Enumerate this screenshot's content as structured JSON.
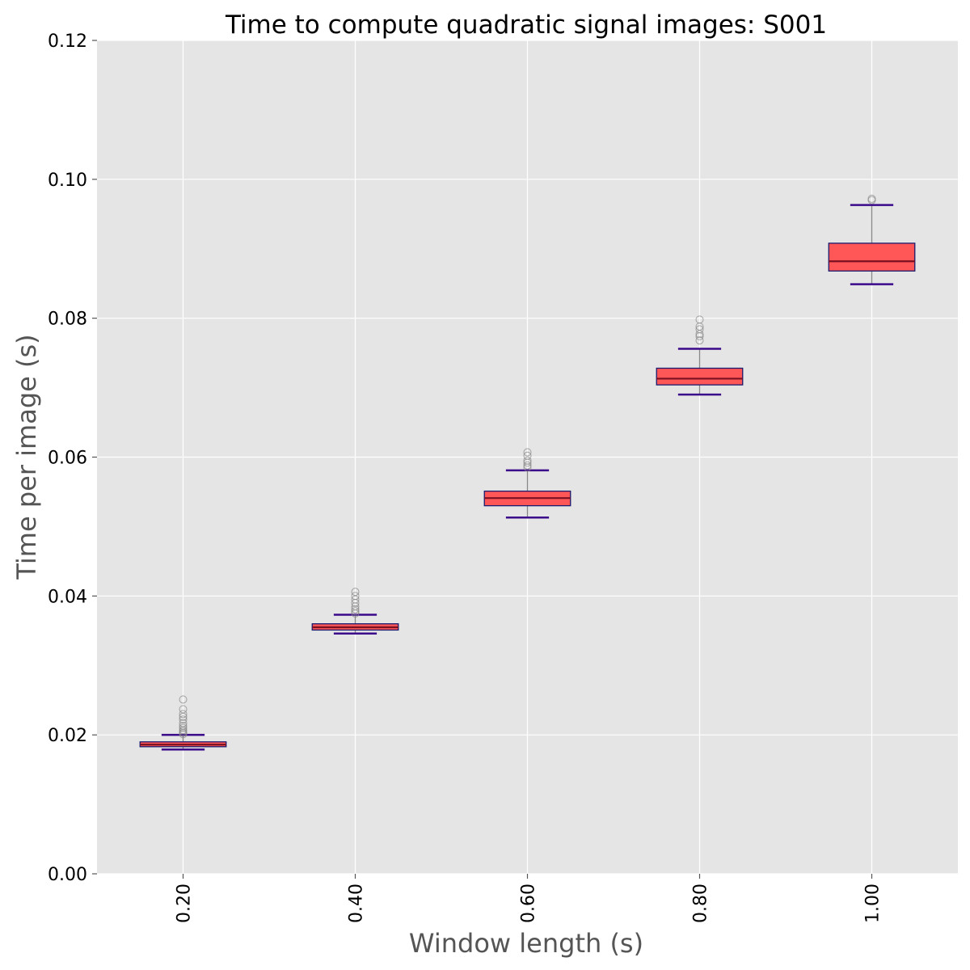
{
  "colors": {
    "plot_background": "#e5e5e5",
    "box_fill": "#ff5757",
    "box_edge": "#1a1a6e",
    "median": "#7a1020",
    "whisker_line": "#888888",
    "cap": "#3b0a8a",
    "flier": "#888888"
  },
  "chart_data": {
    "type": "box",
    "title": "Time to compute quadratic signal images: S001",
    "xlabel": "Window length (s)",
    "ylabel": "Time per image (s)",
    "xlim": [
      0.1,
      1.1
    ],
    "ylim": [
      0.0,
      0.12
    ],
    "xticks": [
      0.2,
      0.4,
      0.6,
      0.8,
      1.0
    ],
    "xtick_labels": [
      "0.20",
      "0.40",
      "0.60",
      "0.80",
      "1.00"
    ],
    "yticks": [
      0.0,
      0.02,
      0.04,
      0.06,
      0.08,
      0.1,
      0.12
    ],
    "ytick_labels": [
      "0.00",
      "0.02",
      "0.04",
      "0.06",
      "0.08",
      "0.10",
      "0.12"
    ],
    "grid": true,
    "boxes": [
      {
        "x": 0.2,
        "whislo": 0.0179,
        "q1": 0.0183,
        "med": 0.0186,
        "q3": 0.019,
        "whishi": 0.02,
        "fliers": [
          0.0201,
          0.0203,
          0.0205,
          0.0207,
          0.021,
          0.0213,
          0.0217,
          0.0222,
          0.0226,
          0.023,
          0.0237,
          0.0251
        ]
      },
      {
        "x": 0.4,
        "whislo": 0.0346,
        "q1": 0.0351,
        "med": 0.0355,
        "q3": 0.036,
        "whishi": 0.0373,
        "fliers": [
          0.0375,
          0.0378,
          0.0381,
          0.0385,
          0.039,
          0.0395,
          0.04,
          0.0406
        ]
      },
      {
        "x": 0.6,
        "whislo": 0.0513,
        "q1": 0.053,
        "med": 0.0541,
        "q3": 0.0551,
        "whishi": 0.0581,
        "fliers": [
          0.0585,
          0.0588,
          0.0592,
          0.0595,
          0.0602,
          0.0607
        ]
      },
      {
        "x": 0.8,
        "whislo": 0.069,
        "q1": 0.0704,
        "med": 0.0713,
        "q3": 0.0728,
        "whishi": 0.0756,
        "fliers": [
          0.0768,
          0.0774,
          0.0777,
          0.0784,
          0.0788,
          0.0798
        ]
      },
      {
        "x": 1.0,
        "whislo": 0.0849,
        "q1": 0.0868,
        "med": 0.0882,
        "q3": 0.0908,
        "whishi": 0.0963,
        "fliers": [
          0.097,
          0.0972
        ]
      }
    ]
  }
}
